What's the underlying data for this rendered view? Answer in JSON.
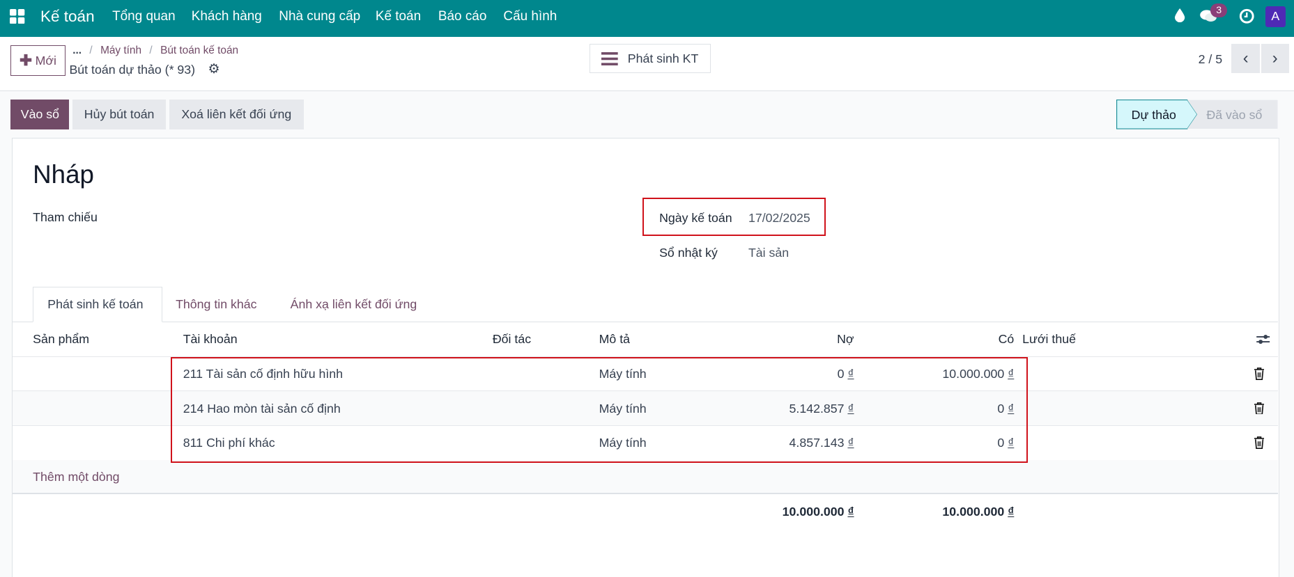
{
  "navbar": {
    "app_name": "Kế toán",
    "menu": [
      "Tổng quan",
      "Khách hàng",
      "Nhà cung cấp",
      "Kế toán",
      "Báo cáo",
      "Cấu hình"
    ],
    "chat_badge": "3",
    "avatar": "A",
    "color": "#00878d"
  },
  "control_panel": {
    "new_label": "Mới",
    "breadcrumb": [
      "...",
      "Máy tính",
      "Bút toán kế toán"
    ],
    "record_title": "Bút toán dự thảo (* 93)",
    "center_button": "Phát sinh KT",
    "pager": "2 / 5"
  },
  "actions": {
    "post": "Vào sổ",
    "cancel": "Hủy bút toán",
    "unreconcile": "Xoá liên kết đối ứng",
    "status": [
      "Dự thảo",
      "Đã vào sổ"
    ],
    "active_status": "Dự thảo",
    "accent": "#714b67"
  },
  "form": {
    "title": "Nháp",
    "ref_label": "Tham chiếu",
    "date_label": "Ngày kế toán",
    "date_value": "17/02/2025",
    "journal_label": "Sổ nhật ký",
    "journal_value": "Tài sản"
  },
  "tabs": [
    "Phát sinh kế toán",
    "Thông tin khác",
    "Ánh xạ liên kết đối ứng"
  ],
  "table": {
    "headers": [
      "Sản phẩm",
      "Tài khoản",
      "Đối tác",
      "Mô tả",
      "Nợ",
      "Có",
      "Lưới thuế"
    ],
    "rows": [
      {
        "account": "211 Tài sản cố định hữu hình",
        "label": "Máy tính",
        "debit": "0",
        "credit": "10.000.000"
      },
      {
        "account": "214 Hao mòn tài sản cố định",
        "label": "Máy tính",
        "debit": "5.142.857",
        "credit": "0"
      },
      {
        "account": "811 Chi phí khác",
        "label": "Máy tính",
        "debit": "4.857.143",
        "credit": "0"
      }
    ],
    "currency": "₫",
    "add_line": "Thêm một dòng",
    "total_debit": "10.000.000",
    "total_credit": "10.000.000"
  }
}
